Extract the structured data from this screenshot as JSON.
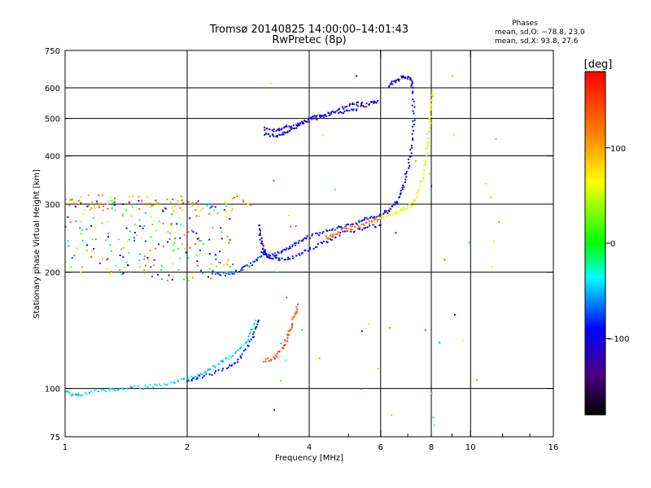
{
  "chart_data": {
    "type": "scatter",
    "title": "Tromsø 20140825 14:00:00–14:01:43",
    "subtitle": "RwPretec (8p)",
    "stats": {
      "heading": "Phases",
      "line1": "mean, sd,O: −78.8, 23.0",
      "line2": "mean, sd,X:  93.8, 27.6"
    },
    "xlabel": "Frequency [MHz]",
    "ylabel": "Stationary phase Virtual Height [km]",
    "x_scale": "log",
    "y_scale": "log",
    "xlim": [
      1,
      16
    ],
    "ylim": [
      75,
      750
    ],
    "x_ticks": [
      1,
      2,
      4,
      6,
      8,
      10,
      16
    ],
    "x_tick_labels": [
      "1",
      "2",
      "4",
      "6",
      "8",
      "10",
      "16"
    ],
    "y_ticks": [
      75,
      100,
      200,
      300,
      400,
      500,
      600,
      750
    ],
    "y_tick_labels": [
      "75",
      "100",
      "200",
      "300",
      "400",
      "500",
      "600",
      "750"
    ],
    "grid": true,
    "colorbar": {
      "label": "[deg]",
      "range": [
        -180,
        180
      ],
      "tick_values": [
        100,
        0,
        -100
      ],
      "tick_labels": [
        "100",
        "0",
        "−100"
      ]
    },
    "traces": [
      {
        "phase": -95,
        "points": [
          [
            3.1,
            455
          ],
          [
            3.3,
            450
          ],
          [
            3.5,
            460
          ],
          [
            3.7,
            475
          ],
          [
            3.9,
            490
          ],
          [
            4.1,
            505
          ],
          [
            4.4,
            515
          ],
          [
            4.8,
            520
          ],
          [
            5.2,
            530
          ],
          [
            5.6,
            545
          ],
          [
            5.9,
            555
          ]
        ]
      },
      {
        "phase": -115,
        "points": [
          [
            3.1,
            470
          ],
          [
            3.3,
            465
          ],
          [
            3.5,
            475
          ],
          [
            3.8,
            485
          ],
          [
            4.2,
            500
          ],
          [
            4.6,
            520
          ],
          [
            5.0,
            540
          ],
          [
            5.4,
            550
          ]
        ]
      },
      {
        "phase": -100,
        "points": [
          [
            6.3,
            605
          ],
          [
            6.5,
            625
          ],
          [
            6.8,
            640
          ],
          [
            7.1,
            635
          ],
          [
            7.2,
            600
          ],
          [
            7.25,
            500
          ],
          [
            7.15,
            420
          ],
          [
            7.0,
            370
          ],
          [
            6.8,
            330
          ],
          [
            6.6,
            305
          ],
          [
            6.3,
            290
          ],
          [
            6.1,
            283
          ]
        ]
      },
      {
        "phase": -90,
        "points": [
          [
            3.05,
            225
          ],
          [
            3.2,
            220
          ],
          [
            3.4,
            225
          ],
          [
            3.6,
            233
          ],
          [
            3.8,
            240
          ],
          [
            4.0,
            247
          ],
          [
            4.4,
            255
          ],
          [
            4.8,
            262
          ],
          [
            5.2,
            268
          ],
          [
            5.6,
            275
          ],
          [
            6.0,
            282
          ]
        ]
      },
      {
        "phase": -95,
        "points": [
          [
            3.0,
            265
          ],
          [
            3.05,
            240
          ],
          [
            3.1,
            225
          ],
          [
            3.2,
            218
          ],
          [
            3.4,
            215
          ],
          [
            3.7,
            220
          ],
          [
            4.0,
            230
          ],
          [
            4.4,
            240
          ],
          [
            4.8,
            252
          ],
          [
            5.4,
            260
          ],
          [
            6.0,
            265
          ]
        ]
      },
      {
        "phase": 120,
        "points": [
          [
            4.4,
            245
          ],
          [
            4.6,
            250
          ],
          [
            4.9,
            258
          ],
          [
            5.2,
            262
          ],
          [
            5.6,
            268
          ],
          [
            6.0,
            275
          ]
        ]
      },
      {
        "phase": 60,
        "points": [
          [
            6.0,
            275
          ],
          [
            6.4,
            282
          ],
          [
            6.8,
            290
          ],
          [
            7.2,
            300
          ],
          [
            7.5,
            330
          ],
          [
            7.7,
            370
          ],
          [
            7.8,
            420
          ],
          [
            7.9,
            470
          ],
          [
            8.0,
            530
          ],
          [
            8.05,
            590
          ]
        ]
      },
      {
        "phase": -45,
        "points": [
          [
            1.0,
            98
          ],
          [
            1.05,
            96
          ],
          [
            1.1,
            97
          ],
          [
            1.25,
            99
          ],
          [
            1.4,
            100
          ],
          [
            1.6,
            101
          ],
          [
            1.8,
            103
          ],
          [
            2.0,
            106
          ],
          [
            2.2,
            110
          ],
          [
            2.4,
            116
          ],
          [
            2.6,
            122
          ],
          [
            2.8,
            132
          ],
          [
            2.95,
            150
          ]
        ]
      },
      {
        "phase": -90,
        "points": [
          [
            2.0,
            105
          ],
          [
            2.2,
            108
          ],
          [
            2.5,
            112
          ],
          [
            2.7,
            120
          ],
          [
            2.9,
            135
          ],
          [
            3.0,
            150
          ]
        ]
      },
      {
        "phase": 140,
        "points": [
          [
            3.1,
            118
          ],
          [
            3.3,
            120
          ],
          [
            3.45,
            128
          ],
          [
            3.55,
            137
          ],
          [
            3.65,
            150
          ],
          [
            3.75,
            165
          ]
        ]
      },
      {
        "phase": -80,
        "points": [
          [
            2.3,
            200
          ],
          [
            2.5,
            197
          ],
          [
            2.7,
            202
          ],
          [
            2.9,
            210
          ],
          [
            3.05,
            220
          ]
        ]
      }
    ],
    "clusters": [
      {
        "phase_min": -130,
        "phase_max": 150,
        "x_range": [
          1.0,
          2.6
        ],
        "y_range": [
          190,
          310
        ],
        "count": 260
      },
      {
        "phase_min": 60,
        "phase_max": 140,
        "x_range": [
          1.0,
          3.0
        ],
        "y_range": [
          290,
          318
        ],
        "count": 60
      },
      {
        "phase_min": -100,
        "phase_max": 150,
        "x_range": [
          2.8,
          12.0
        ],
        "y_range": [
          80,
          650
        ],
        "count": 45
      }
    ]
  }
}
